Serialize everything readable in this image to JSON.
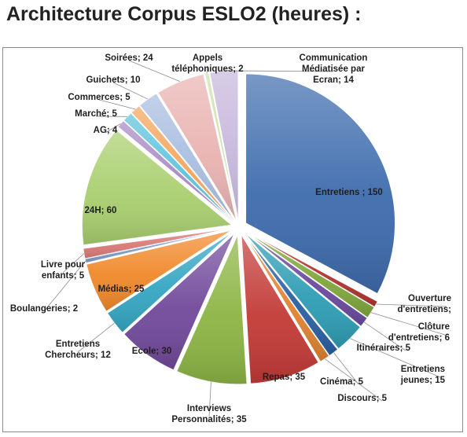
{
  "page": {
    "title": "Architecture Corpus ESLO2 (heures) :"
  },
  "colors": {
    "background": "#ffffff",
    "frame": "#8a8a8a"
  },
  "chart_data": {
    "type": "pie",
    "title": "Architecture Corpus ESLO2 (heures) :",
    "unit": "heures",
    "exploded": true,
    "slices": [
      {
        "name": "Entretiens",
        "value": 150,
        "label": "Entretiens ; 150",
        "color": "#3e6cad"
      },
      {
        "name": "Ouverture d'entretiens",
        "value": 3,
        "label": "Ouverture d'entretiens;",
        "color": "#b03430"
      },
      {
        "name": "Clôture d'entretiens",
        "value": 6,
        "label": "Clôture d'entretiens; 6",
        "color": "#7fa63b"
      },
      {
        "name": "Itinéraires",
        "value": 5,
        "label": "Itinéraires; 5",
        "color": "#6a4a9e"
      },
      {
        "name": "Entretiens jeunes",
        "value": 15,
        "label": "Entretiens jeunes; 15",
        "color": "#2e9db4"
      },
      {
        "name": "Cinéma",
        "value": 5,
        "label": "Cinéma; 5",
        "color": "#2a5fa3"
      },
      {
        "name": "Discours",
        "value": 5,
        "label": "Discours; 5",
        "color": "#e08330"
      },
      {
        "name": "Repas",
        "value": 35,
        "label": "Repas; 35",
        "color": "#c23a36"
      },
      {
        "name": "Interviews Personnalités",
        "value": 35,
        "label": "Interviews Personnalités; 35",
        "color": "#8cb444"
      },
      {
        "name": "Ecole",
        "value": 30,
        "label": "Ecole; 30",
        "color": "#71499a"
      },
      {
        "name": "Entretiens Chercheurs",
        "value": 12,
        "label": "Entretiens Chercheurs; 12",
        "color": "#35a6c2"
      },
      {
        "name": "Médias",
        "value": 25,
        "label": "Médias; 25",
        "color": "#f0882a"
      },
      {
        "name": "Boulangeries",
        "value": 2,
        "label": "Boulangeries; 2",
        "color": "#7e9ccd"
      },
      {
        "name": "Livre pour enfants",
        "value": 5,
        "label": "Livre pour enfants; 5",
        "color": "#d97975"
      },
      {
        "name": "24H",
        "value": 60,
        "label": "24H; 60",
        "color": "#a9cf6f"
      },
      {
        "name": "AG",
        "value": 4,
        "label": "AG; 4",
        "color": "#a78ac6"
      },
      {
        "name": "Marché",
        "value": 5,
        "label": "Marché; 5",
        "color": "#5cc3dc"
      },
      {
        "name": "Commerces",
        "value": 5,
        "label": "Commerces; 5",
        "color": "#f4a55d"
      },
      {
        "name": "Guichets",
        "value": 10,
        "label": "Guichets; 10",
        "color": "#a8bde0"
      },
      {
        "name": "Soirées",
        "value": 24,
        "label": "Soirées; 24",
        "color": "#e9b3b1"
      },
      {
        "name": "Appels téléphoniques",
        "value": 2,
        "label": "Appels téléphoniques; 2",
        "color": "#cde0a8"
      },
      {
        "name": "Communication Médiatisée par Ecran",
        "value": 14,
        "label": "Communication Médiatisée par Ecran; 14",
        "color": "#c7b8dc"
      }
    ]
  }
}
